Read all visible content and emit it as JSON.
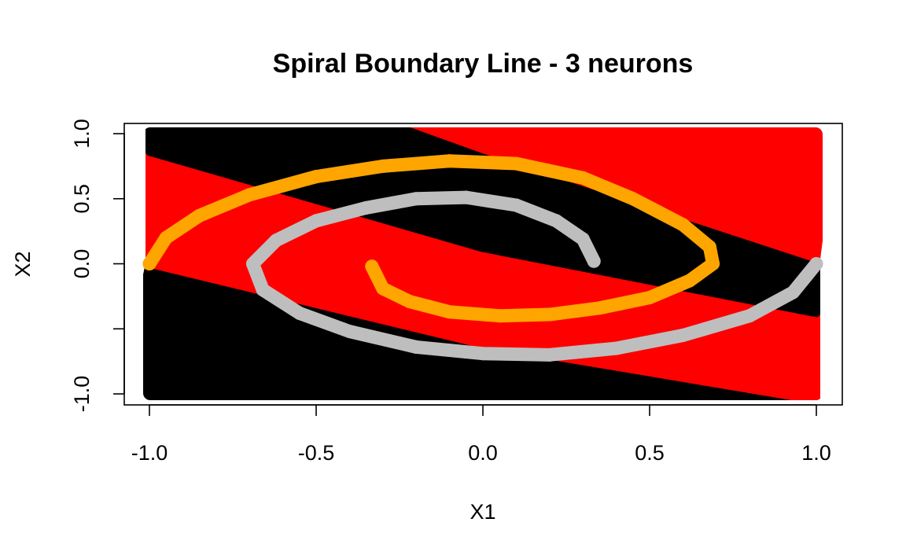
{
  "chart_data": {
    "type": "scatter",
    "title": "Spiral Boundary Line - 3 neurons",
    "xlabel": "X1",
    "ylabel": "X2",
    "xlim": [
      -1.0,
      1.0
    ],
    "ylim": [
      -1.0,
      1.0
    ],
    "x_ticks": [
      -1.0,
      -0.5,
      0.0,
      0.5,
      1.0
    ],
    "x_tick_labels": [
      "-1.0",
      "-0.5",
      "0.0",
      "0.5",
      "1.0"
    ],
    "y_ticks": [
      -1.0,
      -0.5,
      0.0,
      0.5,
      1.0
    ],
    "y_tick_labels": [
      "-1.0",
      "",
      "0.0",
      "0.5",
      "1.0"
    ],
    "grid": false,
    "legend": "none",
    "background_classes": {
      "description_colors": {
        "class_a": "#000000",
        "class_b": "#ff0000"
      },
      "boundaries_x": [
        -1.0,
        0.0,
        1.0
      ],
      "boundary_lower_y": [
        0.0,
        -0.62,
        -1.05
      ],
      "boundary_middle_y": [
        0.86,
        0.12,
        -0.38
      ],
      "boundary_upper_y": [
        1.8,
        0.88,
        0.04
      ]
    },
    "series": [
      {
        "color": "#ffa500",
        "points": [
          [
            -0.333,
            -0.02
          ],
          [
            -0.3,
            -0.19
          ],
          [
            -0.22,
            -0.29
          ],
          [
            -0.1,
            -0.37
          ],
          [
            0.05,
            -0.4
          ],
          [
            0.2,
            -0.39
          ],
          [
            0.35,
            -0.34
          ],
          [
            0.5,
            -0.26
          ],
          [
            0.62,
            -0.13
          ],
          [
            0.69,
            0.0
          ],
          [
            0.68,
            0.13
          ],
          [
            0.6,
            0.3
          ],
          [
            0.45,
            0.5
          ],
          [
            0.3,
            0.66
          ],
          [
            0.1,
            0.77
          ],
          [
            -0.1,
            0.79
          ],
          [
            -0.3,
            0.75
          ],
          [
            -0.5,
            0.67
          ],
          [
            -0.7,
            0.53
          ],
          [
            -0.85,
            0.37
          ],
          [
            -0.95,
            0.2
          ],
          [
            -1.0,
            0.0
          ]
        ]
      },
      {
        "color": "#bebebe",
        "points": [
          [
            0.333,
            0.02
          ],
          [
            0.3,
            0.19
          ],
          [
            0.22,
            0.33
          ],
          [
            0.1,
            0.45
          ],
          [
            -0.05,
            0.51
          ],
          [
            -0.2,
            0.5
          ],
          [
            -0.35,
            0.43
          ],
          [
            -0.5,
            0.33
          ],
          [
            -0.62,
            0.18
          ],
          [
            -0.69,
            0.0
          ],
          [
            -0.66,
            -0.2
          ],
          [
            -0.55,
            -0.38
          ],
          [
            -0.4,
            -0.52
          ],
          [
            -0.2,
            -0.64
          ],
          [
            0.0,
            -0.69
          ],
          [
            0.2,
            -0.7
          ],
          [
            0.4,
            -0.65
          ],
          [
            0.6,
            -0.55
          ],
          [
            0.8,
            -0.4
          ],
          [
            0.93,
            -0.22
          ],
          [
            1.0,
            0.0
          ]
        ]
      }
    ]
  }
}
